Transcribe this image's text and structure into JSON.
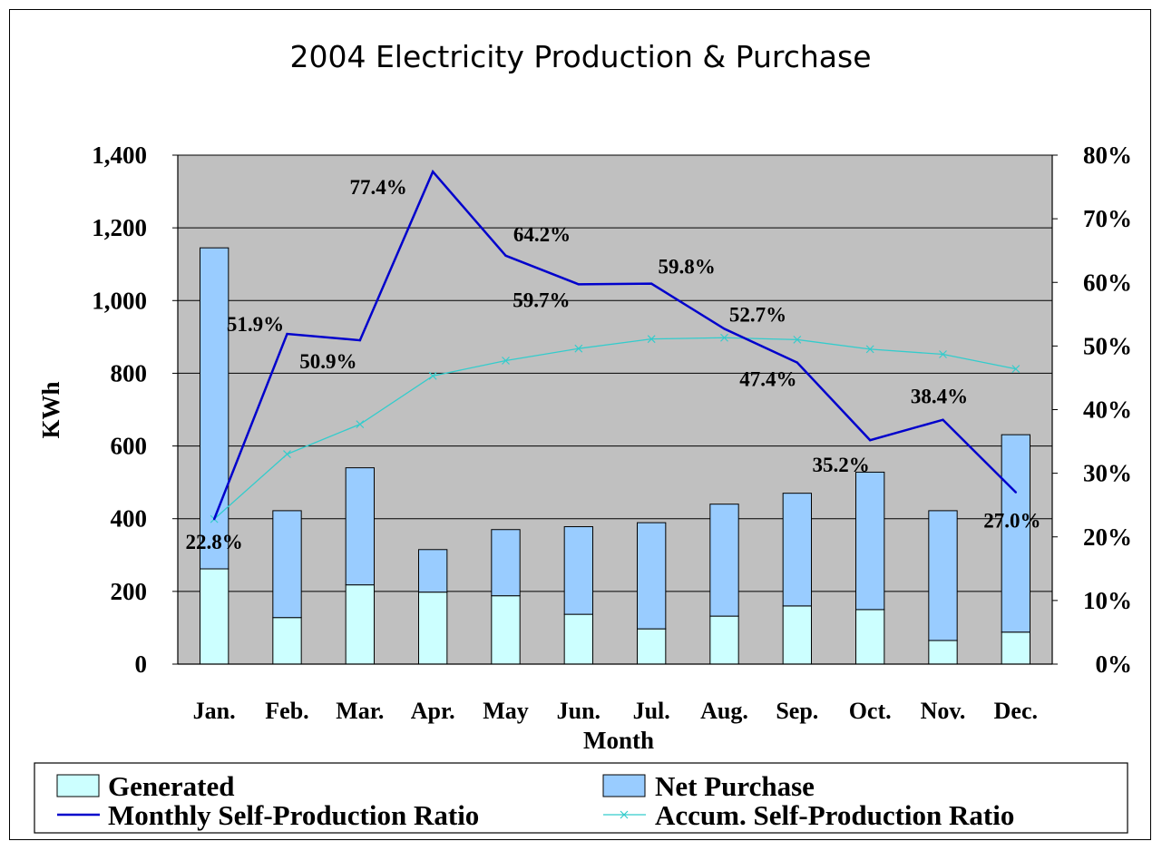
{
  "chart_data": {
    "type": "bar",
    "title": "2004 Electricity Production & Purchase",
    "xlabel": "Month",
    "ylabel": "KWh",
    "categories": [
      "Jan.",
      "Feb.",
      "Mar.",
      "Apr.",
      "May",
      "Jun.",
      "Jul.",
      "Aug.",
      "Sep.",
      "Oct.",
      "Nov.",
      "Dec."
    ],
    "ylim": [
      0,
      1400
    ],
    "y_ticks": [
      "0",
      "200",
      "400",
      "600",
      "800",
      "1,000",
      "1,200",
      "1,400"
    ],
    "y2lim": [
      0,
      80
    ],
    "y2_ticks": [
      "0%",
      "10%",
      "20%",
      "30%",
      "40%",
      "50%",
      "60%",
      "70%",
      "80%"
    ],
    "stacked": true,
    "grid": true,
    "legend_position": "bottom",
    "series": [
      {
        "name": "Generated",
        "type": "bar",
        "axis": "left",
        "color": "#ccffff",
        "values": [
          262,
          128,
          218,
          198,
          188,
          137,
          97,
          132,
          160,
          150,
          65,
          88
        ]
      },
      {
        "name": "Net Purchase",
        "type": "bar",
        "axis": "left",
        "color": "#99ccff",
        "values": [
          883,
          294,
          322,
          117,
          182,
          241,
          292,
          308,
          310,
          378,
          357,
          543
        ]
      },
      {
        "name": "Monthly Self-Production Ratio",
        "type": "line",
        "axis": "right",
        "color": "#0000cc",
        "values": [
          22.8,
          51.9,
          50.9,
          77.4,
          64.2,
          59.7,
          59.8,
          52.7,
          47.4,
          35.2,
          38.4,
          27.0
        ],
        "labels": [
          "22.8%",
          "51.9%",
          "50.9%",
          "77.4%",
          "64.2%",
          "59.7%",
          "59.8%",
          "52.7%",
          "47.4%",
          "35.2%",
          "38.4%",
          "27.0%"
        ]
      },
      {
        "name": "Accum. Self-Production Ratio",
        "type": "line",
        "axis": "right",
        "color": "#33cccc",
        "marker": "x",
        "values": [
          22.8,
          33.0,
          37.7,
          45.3,
          47.7,
          49.6,
          51.1,
          51.3,
          51.0,
          49.5,
          48.7,
          46.4
        ]
      }
    ]
  }
}
